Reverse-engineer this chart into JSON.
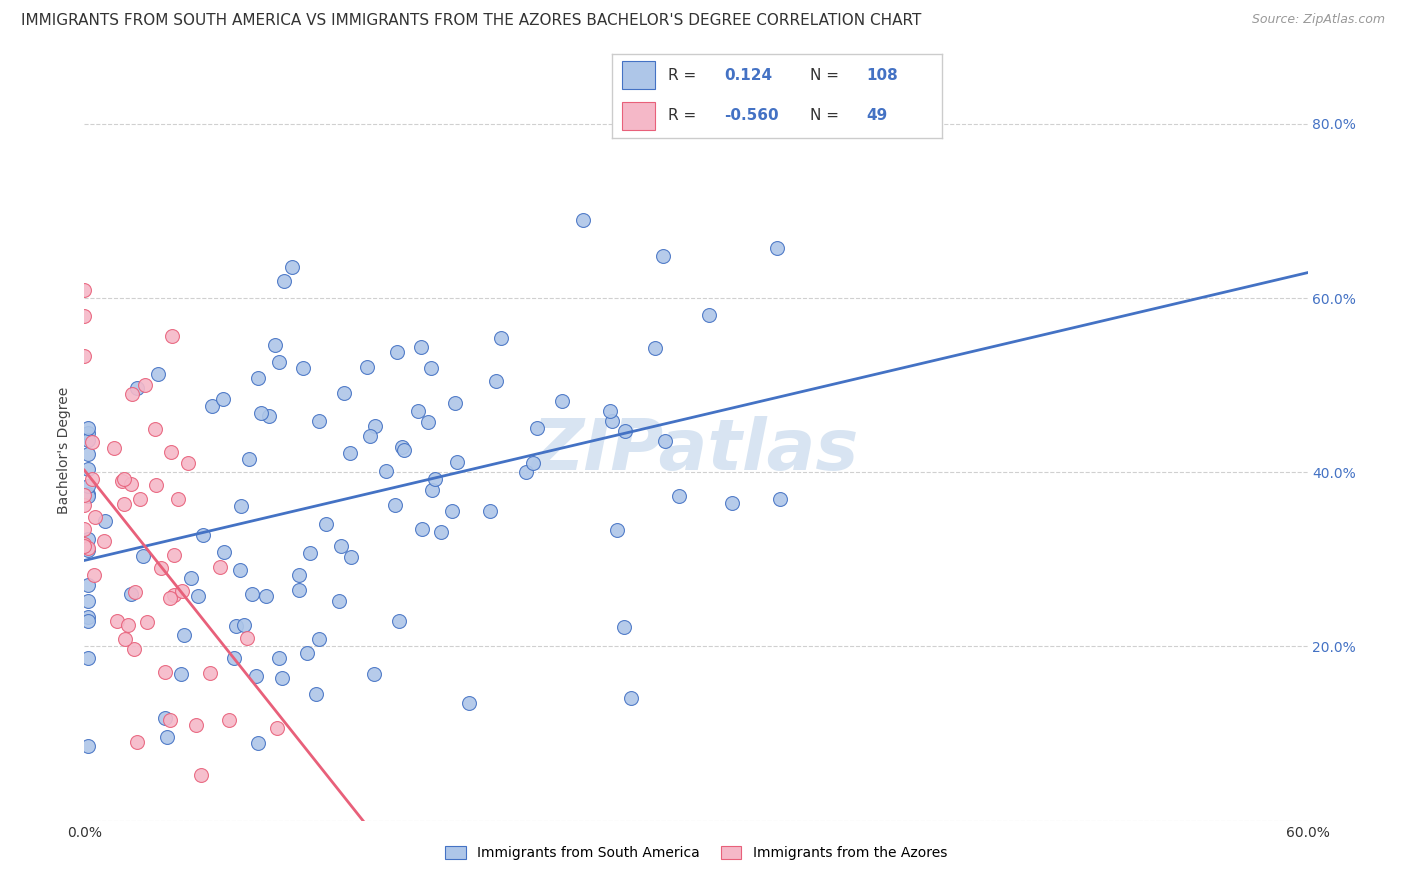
{
  "title": "IMMIGRANTS FROM SOUTH AMERICA VS IMMIGRANTS FROM THE AZORES BACHELOR'S DEGREE CORRELATION CHART",
  "source": "Source: ZipAtlas.com",
  "ylabel": "Bachelor's Degree",
  "xlim": [
    0.0,
    0.6
  ],
  "ylim": [
    0.0,
    0.85
  ],
  "xtick_positions": [
    0.0,
    0.1,
    0.2,
    0.3,
    0.4,
    0.5,
    0.6
  ],
  "xticklabels": [
    "0.0%",
    "",
    "",
    "",
    "",
    "",
    "60.0%"
  ],
  "ytick_positions": [
    0.0,
    0.2,
    0.4,
    0.6,
    0.8
  ],
  "yticklabels_right": [
    "",
    "20.0%",
    "40.0%",
    "60.0%",
    "80.0%"
  ],
  "blue_R": 0.124,
  "blue_N": 108,
  "pink_R": -0.56,
  "pink_N": 49,
  "blue_fill": "#aec6e8",
  "pink_fill": "#f5b8c8",
  "blue_edge": "#4472c4",
  "pink_edge": "#e8607a",
  "blue_line": "#4472c4",
  "pink_line": "#e8607a",
  "legend_label_blue": "Immigrants from South America",
  "legend_label_pink": "Immigrants from the Azores",
  "watermark": "ZIPatlas",
  "bg": "#ffffff",
  "grid_color": "#d0d0d0",
  "title_fontsize": 11,
  "source_fontsize": 9,
  "tick_fontsize": 10,
  "seed": 7
}
